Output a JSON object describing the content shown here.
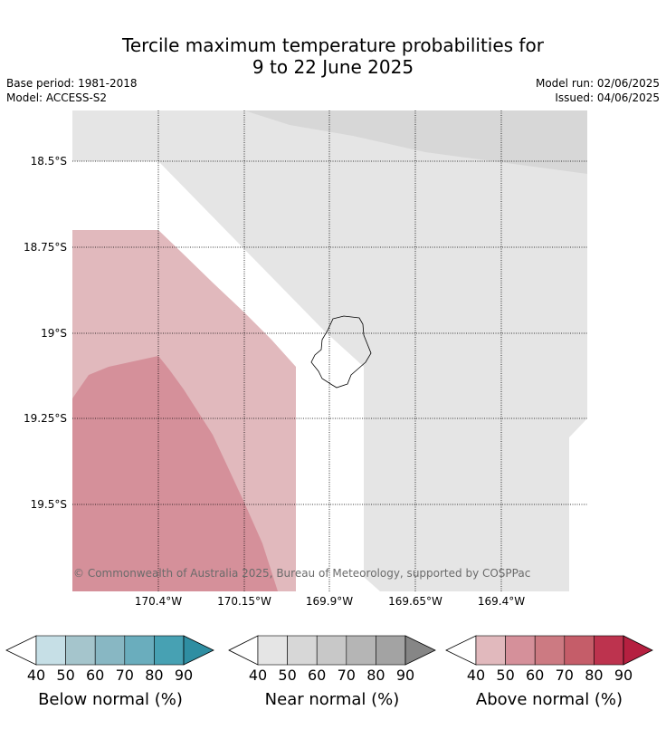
{
  "title_line1": "Tercile maximum temperature probabilities for",
  "title_line2": "9 to 22 June 2025",
  "meta": {
    "base_period": "Base period: 1981-2018",
    "model": "Model: ACCESS-S2",
    "model_run": "Model run: 02/06/2025",
    "issued": "Issued: 04/06/2025"
  },
  "map": {
    "lat_labels": [
      "18.5°S",
      "18.75°S",
      "19°S",
      "19.25°S",
      "19.5°S"
    ],
    "lon_labels": [
      "170.4°W",
      "170.15°W",
      "169.9°W",
      "169.65°W",
      "169.4°W"
    ],
    "copyright": "© Commonwealth of Australia 2025, Bureau of Meteorology, supported by COSPPac",
    "region_colors": {
      "near_40_50": "#e5e5e5",
      "near_50_60": "#d7d7d7",
      "above_40_50": "#e1b9bd",
      "above_50_60": "#d5909a"
    }
  },
  "colorbars": [
    {
      "label": "Below normal (%)",
      "ticks": [
        "40",
        "50",
        "60",
        "70",
        "80",
        "90"
      ],
      "colors": [
        "#c6dfe6",
        "#a5c5cc",
        "#88b7c3",
        "#6aadbd",
        "#47a1b3",
        "#2f8ea2"
      ]
    },
    {
      "label": "Near normal (%)",
      "ticks": [
        "40",
        "50",
        "60",
        "70",
        "80",
        "90"
      ],
      "colors": [
        "#e5e5e5",
        "#d7d7d7",
        "#c8c8c8",
        "#b5b5b5",
        "#a3a3a3",
        "#868686"
      ]
    },
    {
      "label": "Above normal (%)",
      "ticks": [
        "40",
        "50",
        "60",
        "70",
        "80",
        "90"
      ],
      "colors": [
        "#e1b9bd",
        "#d5909a",
        "#cc7a82",
        "#c55d69",
        "#bd334e",
        "#b52040"
      ]
    }
  ]
}
